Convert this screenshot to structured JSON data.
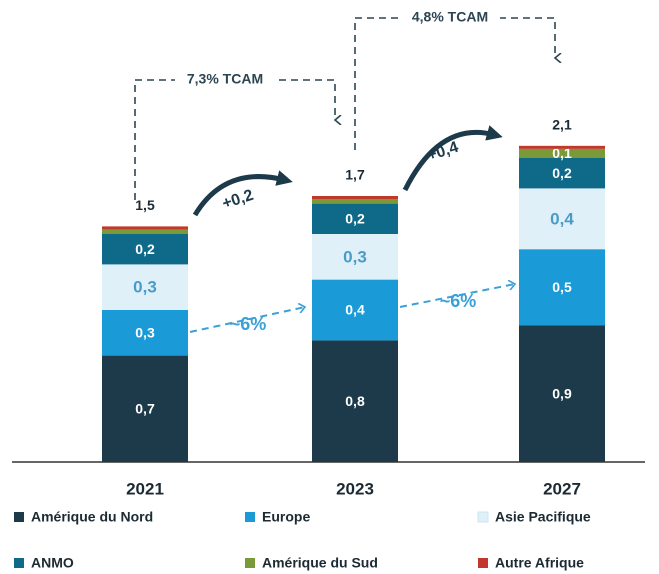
{
  "chart_data": {
    "type": "stacked_bar",
    "categories": [
      "2021",
      "2023",
      "2027"
    ],
    "series": [
      {
        "name": "Amérique du Nord",
        "color": "#1c3a4a",
        "label_color": "#ffffff",
        "values": [
          0.7,
          0.8,
          0.9
        ],
        "value_labels": [
          "0,7",
          "0,8",
          "0,9"
        ]
      },
      {
        "name": "Europe",
        "color": "#1a9ad6",
        "label_color": "#ffffff",
        "values": [
          0.3,
          0.4,
          0.5
        ],
        "value_labels": [
          "0,3",
          "0,4",
          "0,5"
        ]
      },
      {
        "name": "Asie Pacifique",
        "color": "#dff0f8",
        "label_color": "#4a9cc8",
        "values": [
          0.3,
          0.3,
          0.4
        ],
        "value_labels": [
          "0,3",
          "0,3",
          "0,4"
        ]
      },
      {
        "name": "ANMO",
        "color": "#0f6a8a",
        "label_color": "#ffffff",
        "values": [
          0.2,
          0.2,
          0.2
        ],
        "value_labels": [
          "0,2",
          "0,2",
          "0,2"
        ]
      },
      {
        "name": "Amérique du Sud",
        "color": "#7a9a3a",
        "label_color": "#ffffff",
        "values": [
          0.03,
          0.03,
          0.06
        ],
        "value_labels": [
          null,
          null,
          "0,1"
        ]
      },
      {
        "name": "Autre Afrique",
        "color": "#c0392b",
        "label_color": "#ffffff",
        "values": [
          0.02,
          0.02,
          0.02
        ]
      }
    ],
    "totals": [
      1.5,
      1.7,
      2.1
    ],
    "total_labels": [
      "1,5",
      "1,7",
      "2,1"
    ],
    "annotations": [
      "7,3% TCAM",
      "4,8% TCAM",
      "+0,2",
      "+0,4",
      "~6%",
      "~6%"
    ]
  }
}
